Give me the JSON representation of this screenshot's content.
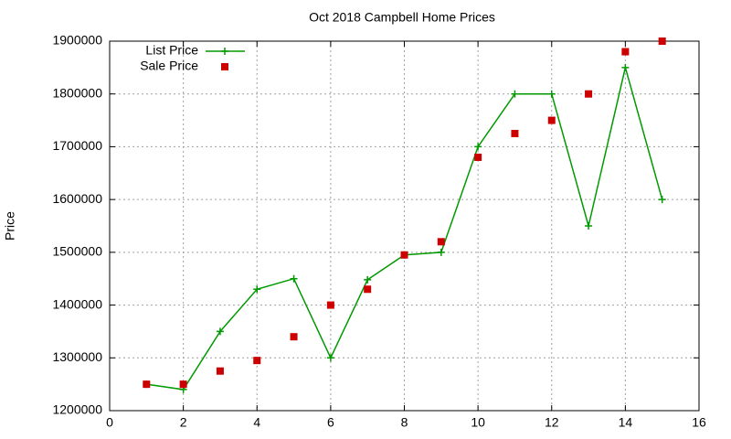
{
  "chart_data": {
    "type": "line",
    "title": "Oct 2018 Campbell Home Prices",
    "ylabel": "Price",
    "x": [
      1,
      2,
      3,
      4,
      5,
      6,
      7,
      8,
      9,
      10,
      11,
      12,
      13,
      14,
      15
    ],
    "series": [
      {
        "name": "List Price",
        "color": "#009900",
        "mode": "linespoints",
        "values": [
          1250000,
          1240000,
          1350000,
          1430000,
          1450000,
          1300000,
          1448000,
          1495000,
          1500000,
          1700000,
          1800000,
          1800000,
          1550000,
          1850000,
          1600000
        ]
      },
      {
        "name": "Sale Price",
        "color": "#cc0000",
        "mode": "points",
        "values": [
          1250000,
          1250000,
          1275000,
          1295000,
          1340000,
          1400000,
          1430000,
          1495000,
          1520000,
          1680000,
          1725000,
          1750000,
          1800000,
          1880000,
          1900000
        ]
      }
    ],
    "xlim": [
      0,
      16
    ],
    "xticks": [
      0,
      2,
      4,
      6,
      8,
      10,
      12,
      14,
      16
    ],
    "ylim": [
      1200000,
      1900000
    ],
    "yticks": [
      1200000,
      1300000,
      1400000,
      1500000,
      1600000,
      1700000,
      1800000,
      1900000
    ],
    "grid": true,
    "legend": "top-left"
  }
}
